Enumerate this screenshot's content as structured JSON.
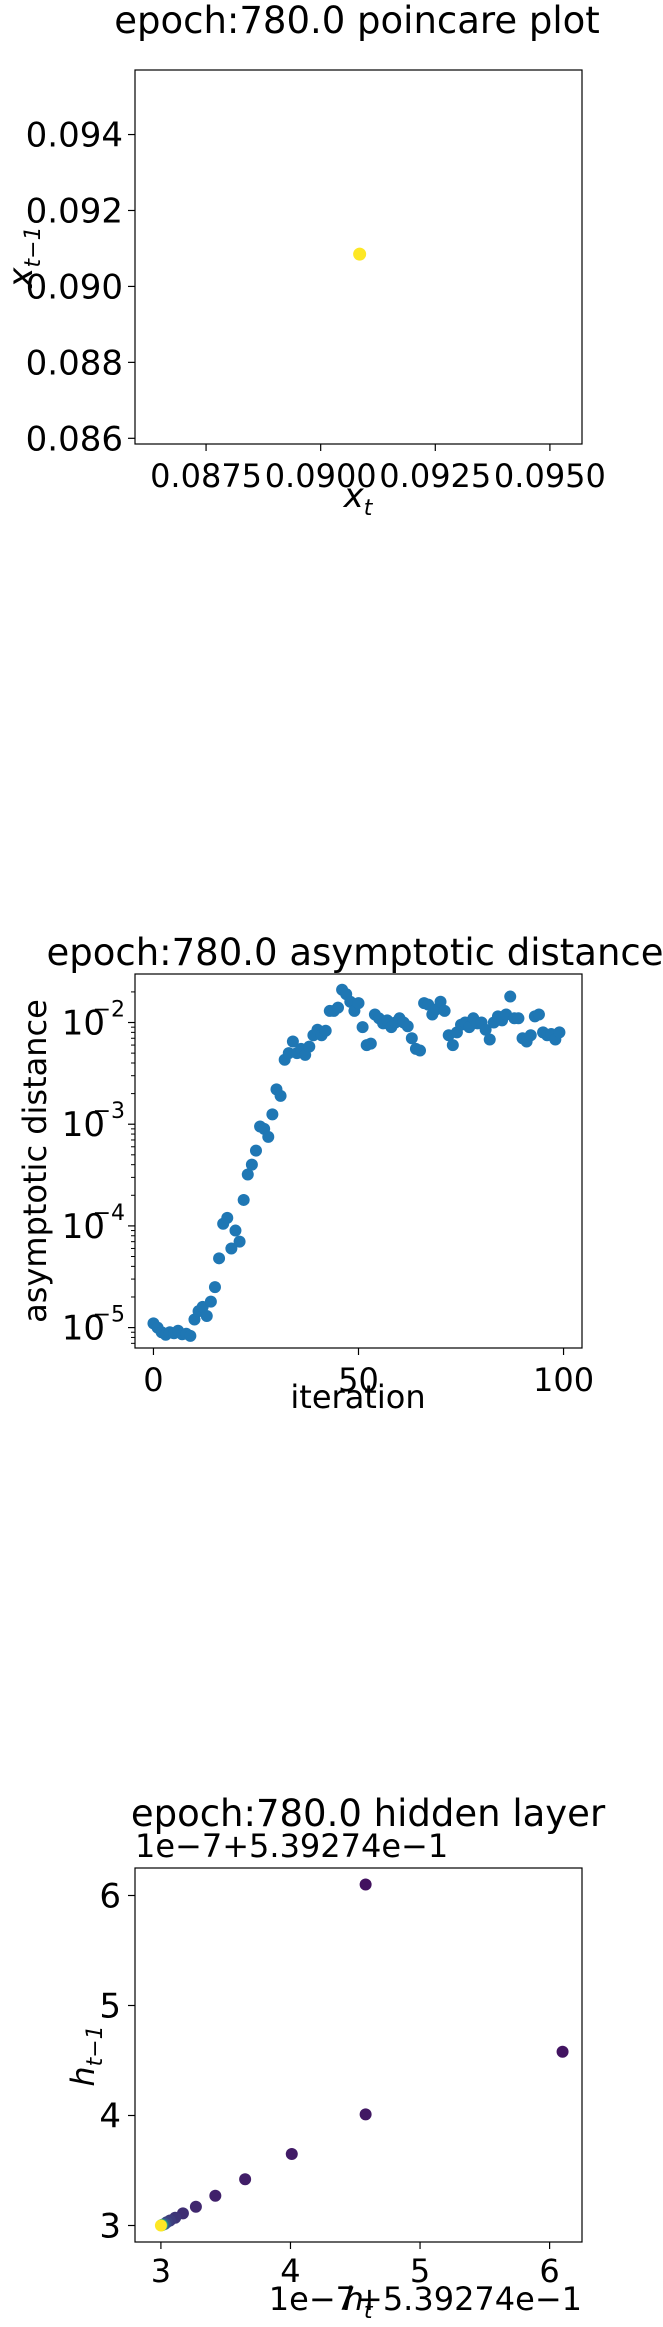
{
  "chart_data": [
    {
      "type": "scatter",
      "title": "epoch:780.0 poincare plot",
      "xlabel_base": "x",
      "xlabel_sub": "t",
      "ylabel_base": "x",
      "ylabel_sub": "t−1",
      "xlim": [
        0.08595,
        0.0957
      ],
      "ylim": [
        0.08585,
        0.0957
      ],
      "xticks": [
        0.0875,
        0.09,
        0.0925,
        0.095
      ],
      "xtick_labels": [
        "0.0875",
        "0.0900",
        "0.0925",
        "0.0950"
      ],
      "yticks": [
        0.086,
        0.088,
        0.09,
        0.092,
        0.094
      ],
      "ytick_labels": [
        "0.086",
        "0.088",
        "0.090",
        "0.092",
        "0.094"
      ],
      "points": [
        {
          "x": 0.09085,
          "y": 0.09085
        }
      ],
      "point_color": "#fde725"
    },
    {
      "type": "scatter",
      "title": "epoch:780.0 asymptotic distance",
      "xlabel": "iteration",
      "ylabel": "asymptotic distance",
      "yscale": "log",
      "xlim": [
        -4.5,
        104.5
      ],
      "ylim": [
        6.3e-06,
        0.03
      ],
      "xticks": [
        0,
        50,
        100
      ],
      "xtick_labels": [
        "0",
        "50",
        "100"
      ],
      "ytick_exponents": [
        -5,
        -4,
        -3,
        -2
      ],
      "ytick_base": "10",
      "point_color": "#1f77b4",
      "values": [
        1.1e-05,
        1e-05,
        9e-06,
        8.5e-06,
        9e-06,
        8.8e-06,
        9.3e-06,
        8.6e-06,
        8.7e-06,
        8.3e-06,
        1.2e-05,
        1.45e-05,
        1.6e-05,
        1.3e-05,
        1.8e-05,
        2.5e-05,
        4.8e-05,
        0.000105,
        0.00012,
        6e-05,
        9e-05,
        7e-05,
        0.00018,
        0.00032,
        0.0004,
        0.00055,
        0.00095,
        0.0009,
        0.00075,
        0.00125,
        0.0022,
        0.0019,
        0.0043,
        0.005,
        0.0065,
        0.005,
        0.0055,
        0.0048,
        0.0058,
        0.0075,
        0.0085,
        0.0075,
        0.0083,
        0.013,
        0.013,
        0.014,
        0.021,
        0.019,
        0.016,
        0.013,
        0.0155,
        0.009,
        0.006,
        0.0062,
        0.012,
        0.011,
        0.0098,
        0.0105,
        0.009,
        0.01,
        0.011,
        0.01,
        0.0092,
        0.007,
        0.0055,
        0.0053,
        0.0155,
        0.015,
        0.012,
        0.0135,
        0.016,
        0.013,
        0.0075,
        0.006,
        0.008,
        0.0095,
        0.01,
        0.009,
        0.011,
        0.0098,
        0.01,
        0.0085,
        0.0068,
        0.01,
        0.0115,
        0.0105,
        0.012,
        0.018,
        0.011,
        0.011,
        0.007,
        0.0065,
        0.0075,
        0.0115,
        0.012,
        0.008,
        0.0075,
        0.0077,
        0.0068,
        0.008
      ]
    },
    {
      "type": "scatter",
      "title": "epoch:780.0 hidden layer",
      "xlabel_base": "h",
      "xlabel_sub": "t",
      "ylabel_base": "h",
      "ylabel_sub": "t−1",
      "x_offset_label": "1e−7+5.39274e−1",
      "y_offset_label": "1e−7+5.39274e−1",
      "xlim": [
        2.8,
        6.25
      ],
      "ylim": [
        2.85,
        6.25
      ],
      "xticks": [
        3,
        4,
        5,
        6
      ],
      "xtick_labels": [
        "3",
        "4",
        "5",
        "6"
      ],
      "yticks": [
        3,
        4,
        5,
        6
      ],
      "ytick_labels": [
        "3",
        "4",
        "5",
        "6"
      ],
      "colormap": "viridis",
      "points": [
        {
          "x": 4.58,
          "y": 6.1,
          "c": 0.05
        },
        {
          "x": 6.1,
          "y": 4.58,
          "c": 0.06
        },
        {
          "x": 4.58,
          "y": 4.01,
          "c": 0.07
        },
        {
          "x": 4.01,
          "y": 3.65,
          "c": 0.08
        },
        {
          "x": 3.65,
          "y": 3.42,
          "c": 0.09
        },
        {
          "x": 3.42,
          "y": 3.27,
          "c": 0.1
        },
        {
          "x": 3.27,
          "y": 3.17,
          "c": 0.12
        },
        {
          "x": 3.17,
          "y": 3.11,
          "c": 0.14
        },
        {
          "x": 3.11,
          "y": 3.07,
          "c": 0.16
        },
        {
          "x": 3.07,
          "y": 3.045,
          "c": 0.18
        },
        {
          "x": 3.045,
          "y": 3.03,
          "c": 0.2
        },
        {
          "x": 3.03,
          "y": 3.015,
          "c": 0.25
        },
        {
          "x": 3.015,
          "y": 3.008,
          "c": 0.35
        },
        {
          "x": 3.008,
          "y": 3.004,
          "c": 0.5
        },
        {
          "x": 3.004,
          "y": 3.002,
          "c": 0.7
        },
        {
          "x": 3.0,
          "y": 3.0,
          "c": 1.0
        }
      ]
    }
  ]
}
